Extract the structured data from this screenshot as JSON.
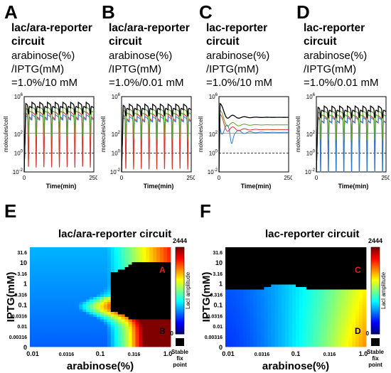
{
  "top_panels": [
    {
      "letter": "A",
      "title": [
        "lac/ara-reporter",
        "circuit"
      ],
      "cond": [
        "arabinose(%)",
        "/IPTG(mM)",
        "=1.0%/10 mM"
      ]
    },
    {
      "letter": "B",
      "title": [
        "lac/ara-reporter",
        "circuit"
      ],
      "cond": [
        "arabinose(%)",
        "/IPTG(mM)",
        "=1.0%/0.01 mM"
      ]
    },
    {
      "letter": "C",
      "title": [
        "lac-reporter",
        "circuit"
      ],
      "cond": [
        "arabinose(%)",
        "/IPTG(mM)",
        "=1.0%/10 mM"
      ]
    },
    {
      "letter": "D",
      "title": [
        "lac-reporter",
        "circuit"
      ],
      "cond": [
        "arabinose(%)",
        "/IPTG(mM)",
        "=1.0%/0.01 mM"
      ]
    }
  ],
  "bottom_panels": [
    {
      "letter": "E",
      "title": "lac/ara-reporter circuit",
      "markers": [
        {
          "text": "A",
          "color": "#e02020"
        },
        {
          "text": "B",
          "color": "#000000"
        }
      ]
    },
    {
      "letter": "F",
      "title": "lac-reporter circuit",
      "markers": [
        {
          "text": "C",
          "color": "#e02020"
        },
        {
          "text": "D",
          "color": "#000000"
        }
      ]
    }
  ],
  "colorbar": {
    "max": "2444",
    "min": "0",
    "label": "LacI amplitude",
    "stable_label": [
      "Stable",
      "fix",
      "point"
    ]
  },
  "colors": {
    "black": "#000000",
    "green": "#5aa02c",
    "red": "#d9322b",
    "blue": "#2a7ad0",
    "threshold": "#444444"
  },
  "chart_data": [
    {
      "type": "line",
      "panel": "A",
      "xlabel": "Time(min)",
      "ylabel": "molecules/cell",
      "xlim": [
        0,
        250
      ],
      "ylim_log10": [
        -2,
        6
      ],
      "x_ticks": [
        "0",
        "250"
      ],
      "y_ticks": [
        "10^-2",
        "10^0",
        "10^2",
        "10^6"
      ],
      "dashed_level": 1,
      "oscillation": {
        "periods": 9,
        "peak_log10": 5.4
      }
    },
    {
      "type": "line",
      "panel": "B",
      "xlabel": "Time(min)",
      "ylabel": "molecules/cell",
      "xlim": [
        0,
        250
      ],
      "ylim_log10": [
        -2,
        6
      ],
      "x_ticks": [
        "0",
        "250"
      ],
      "y_ticks": [
        "10^-2",
        "10^0",
        "10^2",
        "10^6"
      ],
      "dashed_level": 1,
      "oscillation": {
        "periods": 9,
        "peak_log10": 5.2
      }
    },
    {
      "type": "line",
      "panel": "C",
      "xlabel": "Time(min)",
      "ylabel": "molecules/cell",
      "xlim": [
        0,
        250
      ],
      "ylim_log10": [
        -2,
        6
      ],
      "x_ticks": [
        "0",
        "250"
      ],
      "y_ticks": [
        "10^-2",
        "10^0",
        "10^2",
        "10^6"
      ],
      "dashed_level": 1,
      "damped_to_log10": {
        "black": 3.8,
        "green": 3.0,
        "red": 2.5,
        "blue": 2.2
      }
    },
    {
      "type": "line",
      "panel": "D",
      "xlabel": "Time(min)",
      "ylabel": "molecules/cell",
      "xlim": [
        0,
        250
      ],
      "ylim_log10": [
        -2,
        6
      ],
      "x_ticks": [
        "0",
        "250"
      ],
      "y_ticks": [
        "10^-2",
        "10^0",
        "10^2",
        "10^6"
      ],
      "dashed_level": 1,
      "oscillation": {
        "periods": 9,
        "peak_log10": 5.0
      }
    },
    {
      "type": "heatmap",
      "panel": "E",
      "title": "lac/ara-reporter circuit",
      "xlabel": "arabinose(%)",
      "ylabel": "IPTG(mM)",
      "x_ticks": [
        "0.01",
        "0.0316",
        "0.1",
        "0.316",
        "1.0"
      ],
      "y_ticks": [
        "31.6",
        "10",
        "3.16",
        "1",
        "0.316",
        "0.1",
        "0.0316",
        "0.01",
        "0.00316",
        "0"
      ],
      "value_range": [
        0,
        2444
      ],
      "stable_region": "upper-right arabinose>0.3 with IPTG 0.1-10"
    },
    {
      "type": "heatmap",
      "panel": "F",
      "title": "lac-reporter circuit",
      "xlabel": "arabinose(%)",
      "ylabel": "IPTG(mM)",
      "x_ticks": [
        "0.01",
        "0.0316",
        "0.1",
        "0.316",
        "1.0"
      ],
      "y_ticks": [
        "31.6",
        "10",
        "3.16",
        "1",
        "0.316",
        "0.1",
        "0.0316",
        "0.01",
        "0.00316",
        "0"
      ],
      "value_range": [
        0,
        2444
      ],
      "stable_region": "IPTG above ~0.1"
    }
  ]
}
